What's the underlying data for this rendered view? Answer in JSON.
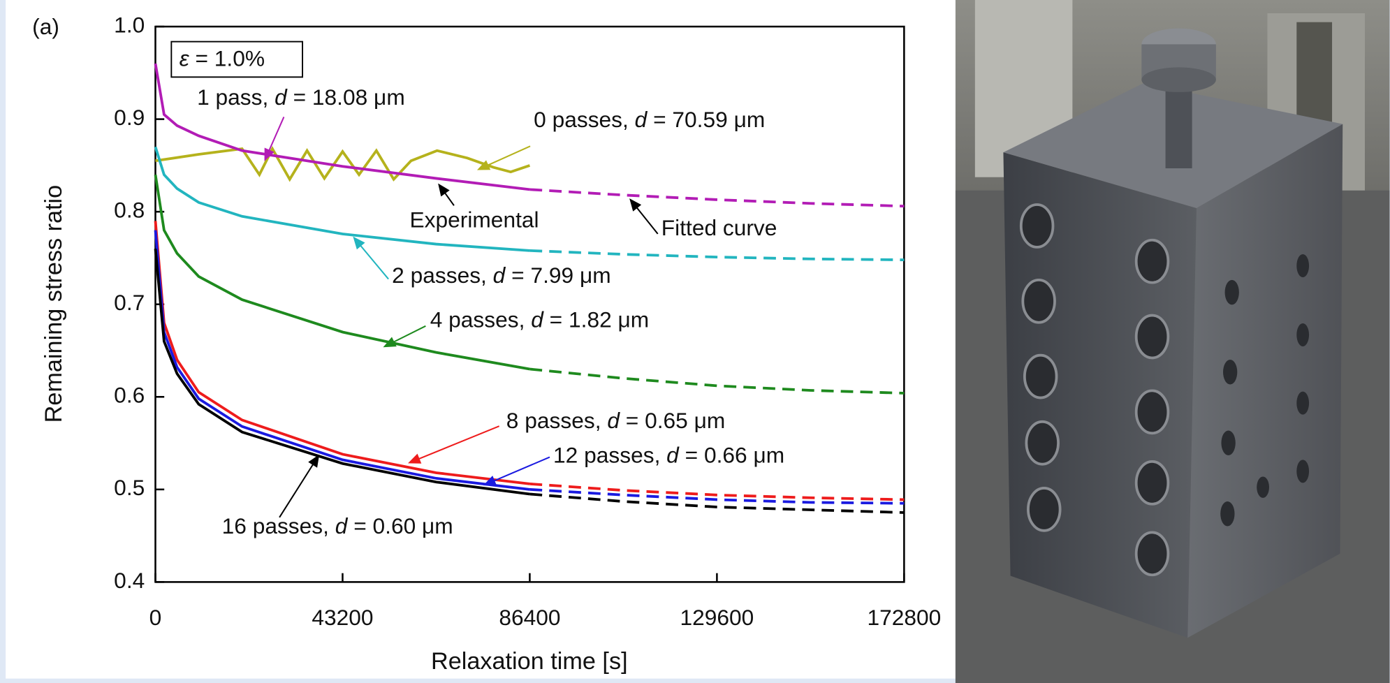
{
  "chart_data": {
    "type": "line",
    "panel_label": "(a)",
    "condition": [
      "ε",
      " = 1.0%"
    ],
    "xlabel": "Relaxation time [s]",
    "ylabel": "Remaining stress ratio",
    "xlim": [
      0,
      172800
    ],
    "xticks": [
      0,
      43200,
      86400,
      129600,
      172800
    ],
    "ylim": [
      0.4,
      1.0
    ],
    "yticks": [
      0.4,
      0.5,
      0.6,
      0.7,
      0.8,
      0.9,
      {
        "value": 1.0,
        "label": "1.0"
      }
    ],
    "annotations": [
      "Experimental",
      "Fitted curve"
    ],
    "series": [
      {
        "label": [
          "0 passes, ",
          "d",
          " = 70.59 μm"
        ],
        "color": "#b5b21c",
        "experimental": {
          "x": [
            0,
            10000,
            20000,
            24000,
            27000,
            31000,
            35000,
            39000,
            43200,
            47000,
            51000,
            55000,
            59000,
            65000,
            72000,
            78000,
            82000,
            86400
          ],
          "values": [
            0.855,
            0.862,
            0.868,
            0.84,
            0.868,
            0.835,
            0.866,
            0.836,
            0.865,
            0.84,
            0.866,
            0.835,
            0.855,
            0.866,
            0.858,
            0.848,
            0.843,
            0.85
          ]
        }
      },
      {
        "label": [
          "1 pass, ",
          "d",
          " = 18.08 μm"
        ],
        "color": "#b21cb5",
        "experimental": {
          "x": [
            0,
            2000,
            5000,
            10000,
            20000,
            43200,
            64800,
            86400
          ],
          "values": [
            0.96,
            0.905,
            0.893,
            0.882,
            0.866,
            0.849,
            0.836,
            0.824
          ]
        },
        "fitted": {
          "x": [
            86400,
            108000,
            129600,
            151200,
            172800
          ],
          "values": [
            0.824,
            0.818,
            0.813,
            0.809,
            0.806
          ]
        }
      },
      {
        "label": [
          "2 passes, ",
          "d",
          " = 7.99 μm"
        ],
        "color": "#22b5bf",
        "experimental": {
          "x": [
            0,
            2000,
            5000,
            10000,
            20000,
            43200,
            64800,
            86400
          ],
          "values": [
            0.87,
            0.84,
            0.825,
            0.81,
            0.795,
            0.776,
            0.765,
            0.758
          ]
        },
        "fitted": {
          "x": [
            86400,
            108000,
            129600,
            151200,
            172800
          ],
          "values": [
            0.758,
            0.754,
            0.751,
            0.749,
            0.748
          ]
        }
      },
      {
        "label": [
          "4 passes, ",
          "d",
          " = 1.82 μm"
        ],
        "color": "#1e8a1e",
        "experimental": {
          "x": [
            0,
            2000,
            5000,
            10000,
            20000,
            43200,
            64800,
            86400
          ],
          "values": [
            0.84,
            0.78,
            0.755,
            0.73,
            0.705,
            0.67,
            0.648,
            0.63
          ]
        },
        "fitted": {
          "x": [
            86400,
            108000,
            129600,
            151200,
            172800
          ],
          "values": [
            0.63,
            0.62,
            0.612,
            0.607,
            0.604
          ]
        }
      },
      {
        "label": [
          "8 passes, ",
          "d",
          " = 0.65 μm"
        ],
        "color": "#ee1c1c",
        "experimental": {
          "x": [
            0,
            2000,
            5000,
            10000,
            20000,
            43200,
            64800,
            86400
          ],
          "values": [
            0.79,
            0.68,
            0.64,
            0.605,
            0.575,
            0.538,
            0.518,
            0.506
          ]
        },
        "fitted": {
          "x": [
            86400,
            108000,
            129600,
            151200,
            172800
          ],
          "values": [
            0.506,
            0.499,
            0.494,
            0.491,
            0.489
          ]
        }
      },
      {
        "label": [
          "12 passes, ",
          "d",
          " = 0.66 μm"
        ],
        "color": "#1a1ae0",
        "experimental": {
          "x": [
            0,
            2000,
            5000,
            10000,
            20000,
            43200,
            64800,
            86400
          ],
          "values": [
            0.78,
            0.67,
            0.632,
            0.598,
            0.568,
            0.532,
            0.512,
            0.5
          ]
        },
        "fitted": {
          "x": [
            86400,
            108000,
            129600,
            151200,
            172800
          ],
          "values": [
            0.5,
            0.494,
            0.489,
            0.486,
            0.485
          ]
        }
      },
      {
        "label": [
          "16 passes, ",
          "d",
          " = 0.60 μm"
        ],
        "color": "#000000",
        "experimental": {
          "x": [
            0,
            2000,
            5000,
            10000,
            20000,
            43200,
            64800,
            86400
          ],
          "values": [
            0.76,
            0.66,
            0.625,
            0.592,
            0.562,
            0.528,
            0.508,
            0.495
          ]
        },
        "fitted": {
          "x": [
            86400,
            108000,
            129600,
            151200,
            172800
          ],
          "values": [
            0.495,
            0.487,
            0.481,
            0.478,
            0.475
          ]
        }
      }
    ]
  }
}
